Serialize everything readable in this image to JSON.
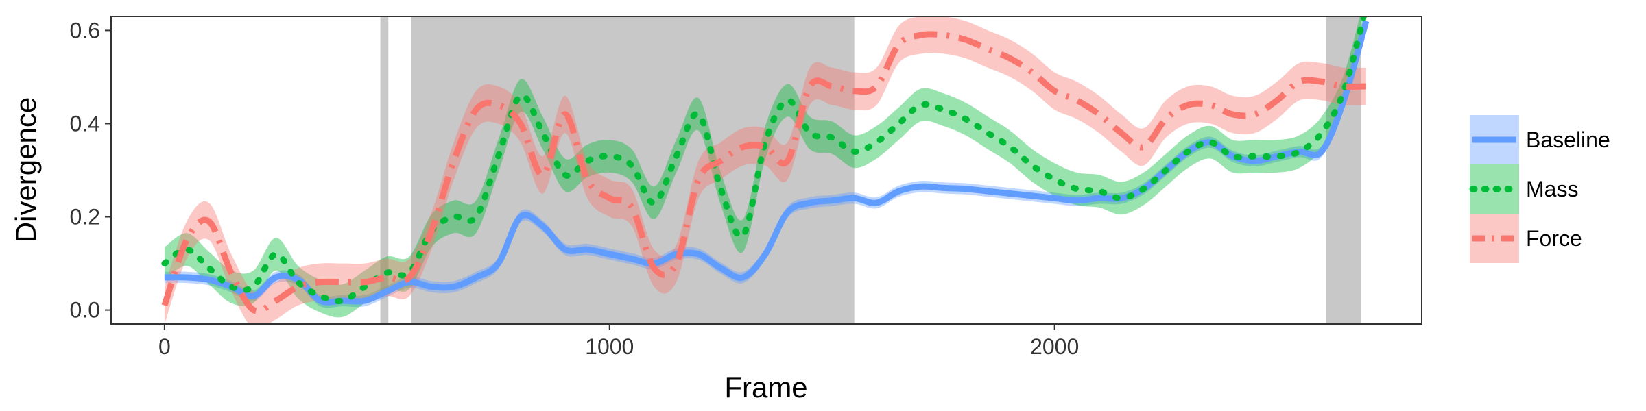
{
  "chart_data": {
    "type": "line",
    "title": "",
    "xlabel": "Frame",
    "ylabel": "Divergence",
    "xlim": [
      -120,
      2825
    ],
    "ylim": [
      -0.03,
      0.63
    ],
    "x_ticks": [
      0,
      1000,
      2000
    ],
    "x_tick_labels": [
      "0",
      "1000",
      "2000"
    ],
    "y_ticks": [
      0.0,
      0.2,
      0.4,
      0.6
    ],
    "y_tick_labels": [
      "0.0",
      "0.2",
      "0.4",
      "0.6"
    ],
    "grid": false,
    "legend_position": "right",
    "shaded_regions": [
      {
        "x_start": 485,
        "x_end": 503
      },
      {
        "x_start": 555,
        "x_end": 1550
      },
      {
        "x_start": 2610,
        "x_end": 2688
      }
    ],
    "series": [
      {
        "name": "Baseline",
        "color": "#619CFF",
        "linestyle": "solid",
        "x": [
          0,
          50,
          100,
          150,
          200,
          250,
          300,
          350,
          400,
          450,
          500,
          550,
          600,
          650,
          700,
          750,
          800,
          850,
          900,
          950,
          1000,
          1050,
          1100,
          1150,
          1200,
          1250,
          1300,
          1350,
          1400,
          1450,
          1500,
          1550,
          1600,
          1650,
          1700,
          1750,
          1800,
          1850,
          1900,
          1950,
          2000,
          2050,
          2100,
          2150,
          2200,
          2250,
          2300,
          2350,
          2400,
          2450,
          2500,
          2550,
          2600,
          2650,
          2700
        ],
        "y": [
          0.07,
          0.07,
          0.065,
          0.05,
          0.03,
          0.07,
          0.065,
          0.02,
          0.02,
          0.02,
          0.04,
          0.06,
          0.05,
          0.05,
          0.07,
          0.1,
          0.2,
          0.18,
          0.13,
          0.13,
          0.12,
          0.11,
          0.1,
          0.12,
          0.12,
          0.09,
          0.07,
          0.12,
          0.21,
          0.23,
          0.235,
          0.24,
          0.23,
          0.255,
          0.265,
          0.262,
          0.26,
          0.255,
          0.25,
          0.245,
          0.24,
          0.235,
          0.24,
          0.24,
          0.26,
          0.3,
          0.34,
          0.36,
          0.33,
          0.32,
          0.33,
          0.34,
          0.34,
          0.45,
          0.62
        ],
        "band": 0.012
      },
      {
        "name": "Mass",
        "color": "#00BA38",
        "linestyle": "dotted",
        "x": [
          0,
          50,
          100,
          150,
          200,
          250,
          300,
          350,
          400,
          450,
          500,
          550,
          600,
          650,
          700,
          750,
          800,
          850,
          900,
          950,
          1000,
          1050,
          1100,
          1150,
          1200,
          1250,
          1300,
          1350,
          1400,
          1450,
          1500,
          1550,
          1600,
          1650,
          1700,
          1750,
          1800,
          1850,
          1900,
          1950,
          2000,
          2050,
          2100,
          2150,
          2200,
          2250,
          2300,
          2350,
          2400,
          2450,
          2500,
          2550,
          2600,
          2650,
          2700
        ],
        "y": [
          0.1,
          0.13,
          0.09,
          0.05,
          0.05,
          0.12,
          0.06,
          0.03,
          0.02,
          0.05,
          0.08,
          0.08,
          0.17,
          0.2,
          0.2,
          0.33,
          0.46,
          0.38,
          0.29,
          0.32,
          0.33,
          0.31,
          0.23,
          0.33,
          0.42,
          0.26,
          0.16,
          0.36,
          0.45,
          0.38,
          0.37,
          0.34,
          0.36,
          0.4,
          0.44,
          0.43,
          0.41,
          0.38,
          0.35,
          0.31,
          0.28,
          0.26,
          0.255,
          0.24,
          0.26,
          0.3,
          0.34,
          0.36,
          0.33,
          0.33,
          0.33,
          0.34,
          0.38,
          0.47,
          0.65
        ],
        "band": 0.035
      },
      {
        "name": "Force",
        "color": "#F8766D",
        "linestyle": "dashdot",
        "x": [
          0,
          50,
          100,
          150,
          200,
          250,
          300,
          350,
          400,
          450,
          500,
          550,
          600,
          650,
          700,
          750,
          800,
          850,
          900,
          950,
          1000,
          1050,
          1100,
          1150,
          1200,
          1250,
          1300,
          1350,
          1400,
          1450,
          1500,
          1550,
          1600,
          1650,
          1700,
          1750,
          1800,
          1850,
          1900,
          1950,
          2000,
          2050,
          2100,
          2150,
          2200,
          2250,
          2300,
          2350,
          2400,
          2450,
          2500,
          2550,
          2600,
          2650,
          2700
        ],
        "y": [
          0.01,
          0.15,
          0.19,
          0.08,
          0.0,
          0.02,
          0.05,
          0.06,
          0.06,
          0.06,
          0.07,
          0.07,
          0.17,
          0.32,
          0.43,
          0.44,
          0.4,
          0.29,
          0.42,
          0.28,
          0.24,
          0.22,
          0.09,
          0.1,
          0.28,
          0.32,
          0.35,
          0.35,
          0.32,
          0.48,
          0.48,
          0.47,
          0.48,
          0.57,
          0.59,
          0.59,
          0.58,
          0.56,
          0.54,
          0.51,
          0.47,
          0.45,
          0.42,
          0.38,
          0.35,
          0.41,
          0.44,
          0.44,
          0.42,
          0.42,
          0.45,
          0.49,
          0.49,
          0.48,
          0.48
        ],
        "band": 0.04
      }
    ]
  }
}
